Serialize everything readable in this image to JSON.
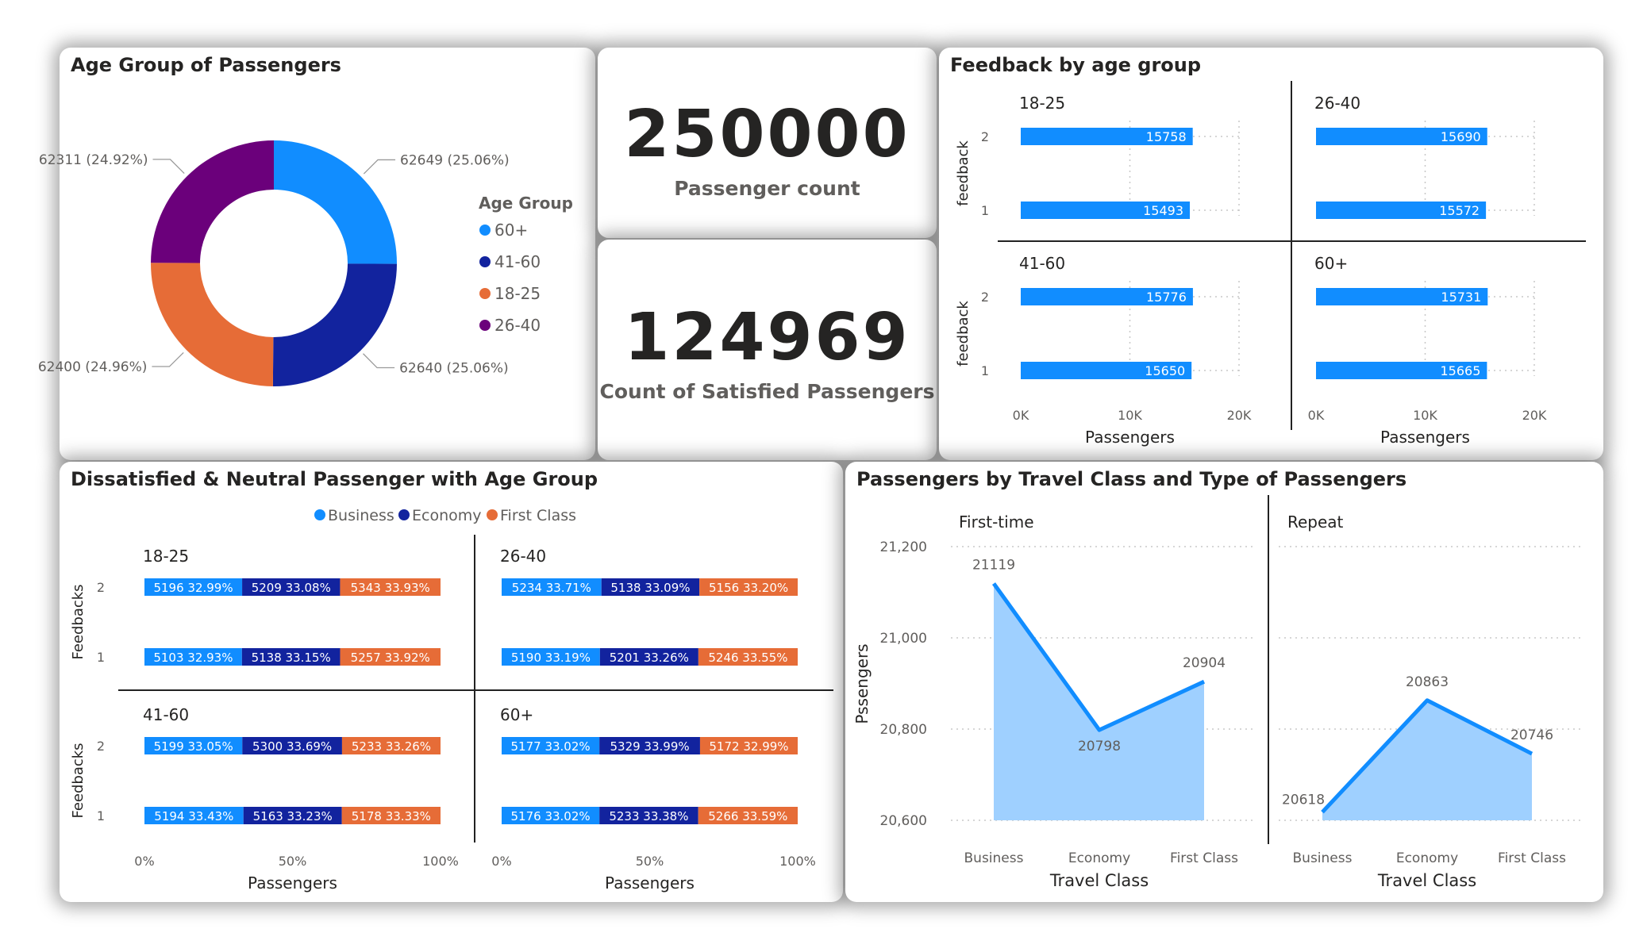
{
  "colors": {
    "business": "#118DFF",
    "economy": "#12239E",
    "first_class": "#E66C37",
    "age_60plus": "#118DFF",
    "age_41_60": "#12239E",
    "age_18_25": "#E66C37",
    "age_26_40": "#6B007B",
    "bar_blue": "#118DFF",
    "area_fill": "#9FD0FF"
  },
  "kpis": {
    "passenger_count": "250000",
    "passenger_count_label": "Passenger count",
    "satisfied_count": "124969",
    "satisfied_label": "Count of Satisfied Passengers"
  },
  "chart_data": [
    {
      "id": "age-donut",
      "type": "pie",
      "title": "Age Group of Passengers",
      "legend_title": "Age Group",
      "legend_position": "right",
      "slices": [
        {
          "label": "60+",
          "value": 62649,
          "text": "62649 (25.06%)"
        },
        {
          "label": "41-60",
          "value": 62640,
          "text": "62640 (25.06%)"
        },
        {
          "label": "18-25",
          "value": 62400,
          "text": "62400 (24.96%)"
        },
        {
          "label": "26-40",
          "value": 62311,
          "text": "62311 (24.92%)"
        }
      ]
    },
    {
      "id": "feedback-by-age",
      "type": "bar",
      "title": "Feedback by age group",
      "xlabel": "Passengers",
      "ylabel": "feedback",
      "xlim": [
        0,
        20000
      ],
      "xticks": [
        "0K",
        "10K",
        "20K"
      ],
      "categories": [
        "2",
        "1"
      ],
      "panels": [
        {
          "name": "18-25",
          "values": [
            15758,
            15493
          ]
        },
        {
          "name": "26-40",
          "values": [
            15690,
            15572
          ]
        },
        {
          "name": "41-60",
          "values": [
            15776,
            15650
          ]
        },
        {
          "name": "60+",
          "values": [
            15731,
            15665
          ]
        }
      ]
    },
    {
      "id": "dissatisfied-neutral",
      "type": "bar",
      "title": "Dissatisfied & Neutral Passenger with Age Group",
      "xlabel": "Passengers",
      "ylabel": "Feedbacks",
      "xticks": [
        "0%",
        "50%",
        "100%"
      ],
      "legend_position": "top",
      "categories": [
        "2",
        "1"
      ],
      "series_names": [
        "Business",
        "Economy",
        "First Class"
      ],
      "panels": [
        {
          "name": "18-25",
          "rows": [
            {
              "labels": [
                "5196 32.99%",
                "5209 33.08%",
                "5343 33.93%"
              ],
              "values": [
                5196,
                5209,
                5343
              ]
            },
            {
              "labels": [
                "5103 32.93%",
                "5138 33.15%",
                "5257 33.92%"
              ],
              "values": [
                5103,
                5138,
                5257
              ]
            }
          ]
        },
        {
          "name": "26-40",
          "rows": [
            {
              "labels": [
                "5234 33.71%",
                "5138 33.09%",
                "5156 33.20%"
              ],
              "values": [
                5234,
                5138,
                5156
              ]
            },
            {
              "labels": [
                "5190 33.19%",
                "5201 33.26%",
                "5246 33.55%"
              ],
              "values": [
                5190,
                5201,
                5246
              ]
            }
          ]
        },
        {
          "name": "41-60",
          "rows": [
            {
              "labels": [
                "5199 33.05%",
                "5300 33.69%",
                "5233 33.26%"
              ],
              "values": [
                5199,
                5300,
                5233
              ]
            },
            {
              "labels": [
                "5194 33.43%",
                "5163 33.23%",
                "5178 33.33%"
              ],
              "values": [
                5194,
                5163,
                5178
              ]
            }
          ]
        },
        {
          "name": "60+",
          "rows": [
            {
              "labels": [
                "5177 33.02%",
                "5329 33.99%",
                "5172 32.99%"
              ],
              "values": [
                5177,
                5329,
                5172
              ]
            },
            {
              "labels": [
                "5176 33.02%",
                "5233 33.38%",
                "5266 33.59%"
              ],
              "values": [
                5176,
                5233,
                5266
              ]
            }
          ]
        }
      ]
    },
    {
      "id": "travel-class",
      "type": "area",
      "title": "Passengers by Travel Class and Type of Passengers",
      "xlabel": "Travel Class",
      "ylabel": "Pssengers",
      "ylim": [
        20600,
        21200
      ],
      "yticks": [
        "21,200",
        "21,000",
        "20,800",
        "20,600"
      ],
      "categories": [
        "Business",
        "Economy",
        "First Class"
      ],
      "panels": [
        {
          "name": "First-time",
          "values": [
            21119,
            20798,
            20904
          ]
        },
        {
          "name": "Repeat",
          "values": [
            20618,
            20863,
            20746
          ]
        }
      ]
    }
  ]
}
